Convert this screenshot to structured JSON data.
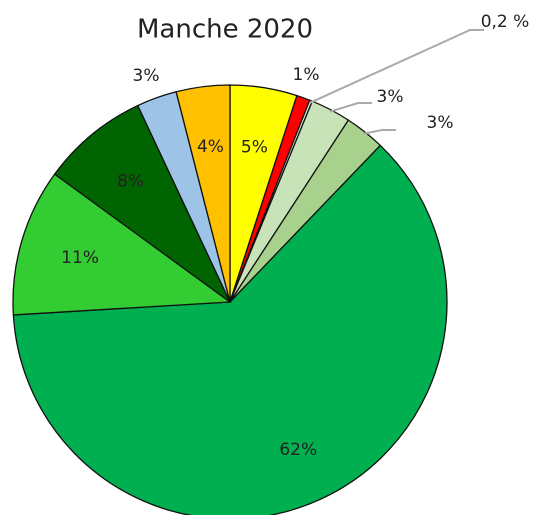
{
  "chart_data": {
    "type": "pie",
    "title": "Manche 2020",
    "values": [
      5,
      1,
      0.2,
      3,
      3,
      62,
      11,
      8,
      3,
      4
    ],
    "value_labels": [
      "5%",
      "1%",
      "0,2 %",
      "3%",
      "3%",
      "62%",
      "11%",
      "8%",
      "3%",
      "4%"
    ],
    "colors": [
      "#ffff00",
      "#ff0000",
      "#e8e8e8",
      "#c9e3b8",
      "#a9d18e",
      "#00b050",
      "#33cc33",
      "#006400",
      "#9dc3e6",
      "#ffc000"
    ]
  }
}
